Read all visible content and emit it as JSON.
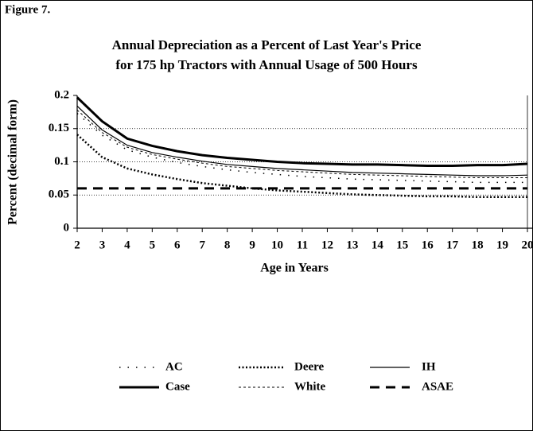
{
  "chart_data": {
    "type": "line",
    "figure_label": "Figure 7.",
    "title": [
      "Annual Depreciation as a Percent of Last Year's Price",
      "for 175 hp Tractors with Annual Usage of 500 Hours"
    ],
    "y_label": "Percent (decimal form)",
    "x_label": "Age in Years",
    "x": [
      2,
      3,
      4,
      5,
      6,
      7,
      8,
      9,
      10,
      11,
      12,
      13,
      14,
      15,
      16,
      17,
      18,
      19,
      20
    ],
    "xlim": [
      2,
      20
    ],
    "xticks": [
      2,
      3,
      4,
      5,
      6,
      7,
      8,
      9,
      10,
      11,
      12,
      13,
      14,
      15,
      16,
      17,
      18,
      19,
      20
    ],
    "ylim": [
      0,
      0.2
    ],
    "yticks": [
      0,
      0.05,
      0.1,
      0.15,
      0.2
    ],
    "grid": true,
    "legend": "bottom",
    "series": [
      {
        "name": "AC",
        "color": "#000000",
        "line_style": "sparse-dotted",
        "values": [
          0.173,
          0.14,
          0.118,
          0.107,
          0.099,
          0.093,
          0.088,
          0.084,
          0.081,
          0.078,
          0.076,
          0.074,
          0.073,
          0.072,
          0.071,
          0.07,
          0.069,
          0.069,
          0.069
        ]
      },
      {
        "name": "Deere",
        "color": "#000000",
        "line_style": "dotted",
        "values": [
          0.141,
          0.107,
          0.09,
          0.081,
          0.074,
          0.068,
          0.064,
          0.06,
          0.057,
          0.055,
          0.053,
          0.051,
          0.05,
          0.049,
          0.048,
          0.048,
          0.047,
          0.047,
          0.047
        ]
      },
      {
        "name": "IH",
        "color": "#000000",
        "line_style": "thin",
        "values": [
          0.184,
          0.148,
          0.125,
          0.114,
          0.107,
          0.101,
          0.096,
          0.093,
          0.09,
          0.088,
          0.086,
          0.084,
          0.083,
          0.082,
          0.081,
          0.08,
          0.079,
          0.079,
          0.08
        ]
      },
      {
        "name": "Case",
        "color": "#000000",
        "line_style": "thick",
        "values": [
          0.197,
          0.161,
          0.135,
          0.124,
          0.116,
          0.11,
          0.106,
          0.103,
          0.1,
          0.098,
          0.097,
          0.096,
          0.096,
          0.095,
          0.094,
          0.094,
          0.095,
          0.095,
          0.097
        ]
      },
      {
        "name": "White",
        "color": "#000000",
        "line_style": "fine-dashed",
        "values": [
          0.178,
          0.144,
          0.122,
          0.111,
          0.104,
          0.098,
          0.093,
          0.09,
          0.087,
          0.085,
          0.083,
          0.081,
          0.08,
          0.079,
          0.078,
          0.077,
          0.076,
          0.076,
          0.076
        ]
      },
      {
        "name": "ASAE",
        "color": "#000000",
        "line_style": "dashed",
        "values": [
          0.06,
          0.06,
          0.06,
          0.06,
          0.06,
          0.06,
          0.06,
          0.06,
          0.06,
          0.06,
          0.06,
          0.06,
          0.06,
          0.06,
          0.06,
          0.06,
          0.06,
          0.06,
          0.06
        ]
      }
    ]
  }
}
